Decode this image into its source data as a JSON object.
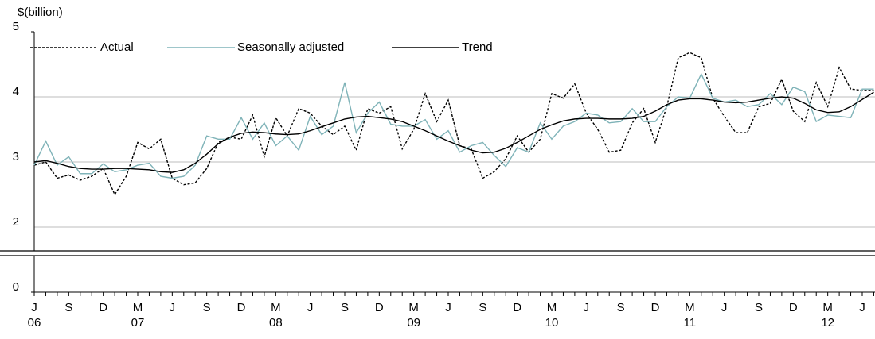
{
  "chart_data": {
    "type": "line",
    "y_axis_label": "$(billion)",
    "categories": [
      "J",
      null,
      null,
      "S",
      null,
      null,
      "D",
      null,
      null,
      "M",
      null,
      null,
      "J",
      null,
      null,
      "S",
      null,
      null,
      "D",
      null,
      null,
      "M",
      null,
      null,
      "J",
      null,
      null,
      "S",
      null,
      null,
      "D",
      null,
      null,
      "M",
      null,
      null,
      "J",
      null,
      null,
      "S",
      null,
      null,
      "D",
      null,
      null,
      "M",
      null,
      null,
      "J",
      null,
      null,
      "S",
      null,
      null,
      "D",
      null,
      null,
      "M",
      null,
      null,
      "J",
      null,
      null,
      "S",
      null,
      null,
      "D",
      null,
      null,
      "M",
      null,
      null,
      "J",
      null
    ],
    "year_labels": [
      "06",
      null,
      null,
      null,
      null,
      null,
      null,
      null,
      null,
      "07",
      null,
      null,
      null,
      null,
      null,
      null,
      null,
      null,
      null,
      null,
      null,
      "08",
      null,
      null,
      null,
      null,
      null,
      null,
      null,
      null,
      null,
      null,
      null,
      "09",
      null,
      null,
      null,
      null,
      null,
      null,
      null,
      null,
      null,
      null,
      null,
      "10",
      null,
      null,
      null,
      null,
      null,
      null,
      null,
      null,
      null,
      null,
      null,
      "11",
      null,
      null,
      null,
      null,
      null,
      null,
      null,
      null,
      null,
      null,
      null,
      "12",
      null,
      null,
      null,
      null
    ],
    "series": [
      {
        "name": "Actual",
        "color": "#000000",
        "dashed": true,
        "values": [
          2.95,
          3.0,
          2.75,
          2.8,
          2.72,
          2.78,
          2.9,
          2.5,
          2.78,
          3.3,
          3.2,
          3.35,
          2.75,
          2.65,
          2.68,
          2.9,
          3.3,
          3.38,
          3.35,
          3.72,
          3.08,
          3.68,
          3.4,
          3.82,
          3.75,
          3.55,
          3.42,
          3.55,
          3.18,
          3.82,
          3.75,
          3.85,
          3.2,
          3.5,
          4.05,
          3.62,
          3.95,
          3.25,
          3.2,
          2.75,
          2.85,
          3.05,
          3.4,
          3.15,
          3.35,
          4.05,
          3.98,
          4.2,
          3.75,
          3.5,
          3.15,
          3.18,
          3.6,
          3.82,
          3.3,
          3.85,
          4.6,
          4.68,
          4.6,
          3.98,
          3.7,
          3.45,
          3.45,
          3.85,
          3.9,
          4.27,
          3.78,
          3.62,
          4.22,
          3.85,
          4.45,
          4.12,
          4.1,
          4.1
        ]
      },
      {
        "name": "Seasonally adjusted",
        "color": "#7fb3b8",
        "dashed": false,
        "values": [
          2.95,
          3.32,
          2.95,
          3.08,
          2.82,
          2.82,
          2.97,
          2.85,
          2.88,
          2.95,
          2.98,
          2.78,
          2.75,
          2.78,
          2.95,
          3.4,
          3.35,
          3.35,
          3.68,
          3.35,
          3.6,
          3.25,
          3.4,
          3.18,
          3.7,
          3.42,
          3.55,
          4.22,
          3.45,
          3.75,
          3.92,
          3.58,
          3.55,
          3.55,
          3.65,
          3.35,
          3.48,
          3.15,
          3.25,
          3.3,
          3.1,
          2.93,
          3.22,
          3.15,
          3.6,
          3.35,
          3.55,
          3.62,
          3.75,
          3.72,
          3.6,
          3.62,
          3.82,
          3.62,
          3.62,
          3.85,
          4.0,
          3.98,
          4.35,
          3.98,
          3.92,
          3.95,
          3.85,
          3.88,
          4.05,
          3.88,
          4.15,
          4.08,
          3.62,
          3.72,
          3.7,
          3.68,
          4.12,
          4.12
        ]
      },
      {
        "name": "Trend",
        "color": "#000000",
        "dashed": false,
        "values": [
          3.0,
          3.02,
          2.98,
          2.93,
          2.9,
          2.89,
          2.89,
          2.9,
          2.9,
          2.89,
          2.88,
          2.85,
          2.84,
          2.88,
          2.98,
          3.12,
          3.28,
          3.38,
          3.44,
          3.46,
          3.45,
          3.43,
          3.42,
          3.43,
          3.48,
          3.54,
          3.6,
          3.66,
          3.69,
          3.7,
          3.68,
          3.66,
          3.62,
          3.55,
          3.48,
          3.4,
          3.32,
          3.25,
          3.18,
          3.14,
          3.15,
          3.21,
          3.3,
          3.4,
          3.5,
          3.57,
          3.63,
          3.66,
          3.67,
          3.67,
          3.66,
          3.66,
          3.67,
          3.7,
          3.78,
          3.88,
          3.95,
          3.97,
          3.97,
          3.95,
          3.92,
          3.91,
          3.92,
          3.95,
          3.98,
          4.0,
          3.98,
          3.9,
          3.8,
          3.76,
          3.77,
          3.85,
          3.96,
          4.07
        ]
      }
    ],
    "ylim": [
      0,
      5
    ],
    "axis_break": [
      0.6,
      1.6
    ],
    "yticks": [
      0,
      2,
      3,
      4,
      5
    ],
    "grid": true,
    "legend": "top-left"
  }
}
